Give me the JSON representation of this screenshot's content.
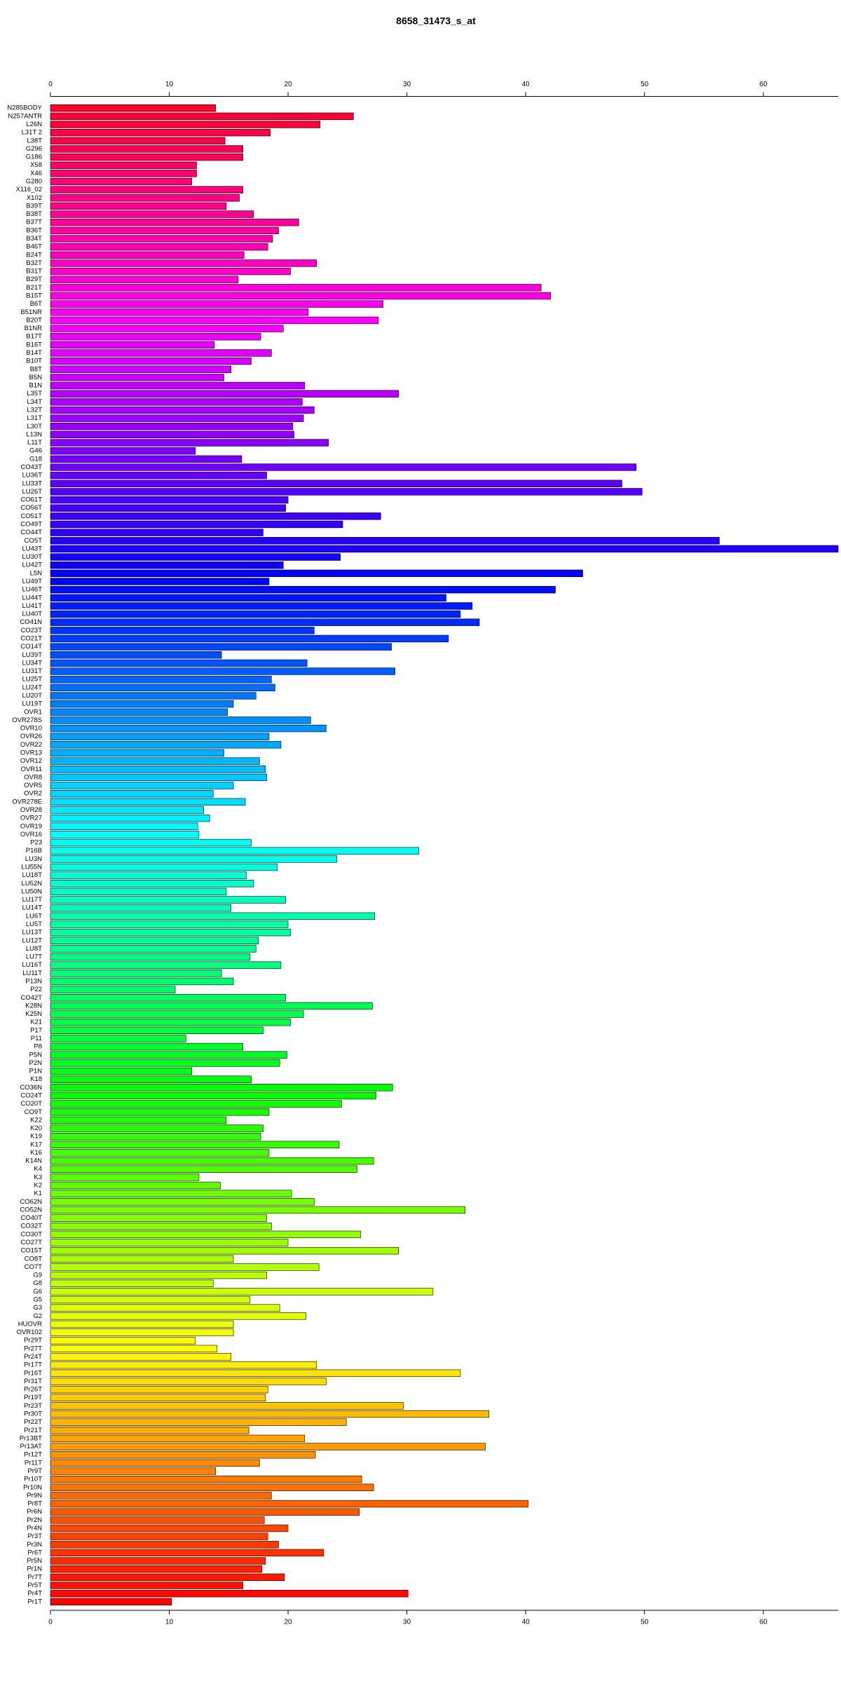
{
  "chart_data": {
    "type": "barh",
    "title": "8658_31473_s_at",
    "categories": [
      "N285BODY",
      "N257ANTR",
      "L26N",
      "L31T 2",
      "L38T",
      "G296",
      "G186",
      "X58",
      "X46",
      "G280",
      "X116_02",
      "X102",
      "B39T",
      "B38T",
      "B37T",
      "B36T",
      "B34T",
      "B46T",
      "B24T",
      "B32T",
      "B31T",
      "B29T",
      "B21T",
      "B15T",
      "B6T",
      "B51NR",
      "B20T",
      "B1NR",
      "B17T",
      "B16T",
      "B14T",
      "B10T",
      "B8T",
      "B5N",
      "B1N",
      "L35T",
      "L34T",
      "L32T",
      "L31T",
      "L30T",
      "L13N",
      "L11T",
      "G46",
      "G18",
      "CO43T",
      "LU36T",
      "LU33T",
      "LU26T",
      "CO61T",
      "CO56T",
      "CO51T",
      "CO49T",
      "CO44T",
      "CO5T",
      "LU43T",
      "LU30T",
      "LU42T",
      "L5N",
      "LU49T",
      "LU46T",
      "LU44T",
      "LU41T",
      "LU40T",
      "CO41N",
      "CO23T",
      "CO21T",
      "CO14T",
      "LU39T",
      "LU34T",
      "LU31T",
      "LU25T",
      "LU24T",
      "LU20T",
      "LU19T",
      "OVR1",
      "OVR278S",
      "OVR10",
      "OVR26",
      "OVR22",
      "OVR13",
      "OVR12",
      "OVR11",
      "OVR8",
      "OVR5",
      "OVR2",
      "OVR278E",
      "OVR28",
      "OVR27",
      "OVR19",
      "OVR16",
      "P23",
      "P16B",
      "LU3N",
      "LU55N",
      "LU18T",
      "LU52N",
      "LU50N",
      "LU17T",
      "LU14T",
      "LU6T",
      "LU5T",
      "LU13T",
      "LU12T",
      "LU8T",
      "LU7T",
      "LU16T",
      "LU11T",
      "P13N",
      "P22",
      "CO42T",
      "K28N",
      "K25N",
      "K21",
      "P17",
      "P11",
      "P8",
      "P5N",
      "P2N",
      "P1N",
      "K18",
      "CO36N",
      "CO24T",
      "CO20T",
      "CO9T",
      "K22",
      "K20",
      "K19",
      "K17",
      "K16",
      "K14N",
      "K4",
      "K3",
      "K2",
      "K1",
      "CO62N",
      "CO52N",
      "CO40T",
      "CO32T",
      "CO30T",
      "CO27T",
      "CO15T",
      "CO8T",
      "CO7T",
      "G9",
      "G8",
      "G6",
      "G5",
      "G3",
      "G2",
      "HUOVR",
      "OVR102",
      "Pr29T",
      "Pr27T",
      "Pr24T",
      "Pr17T",
      "Pr16T",
      "Pr31T",
      "Pr26T",
      "Pr19T",
      "Pr23T",
      "Pr30T",
      "Pr22T",
      "Pr21T",
      "Pr13BT",
      "Pr13AT",
      "Pr12T",
      "Pr11T",
      "Pr9T",
      "Pr10T",
      "Pr10N",
      "Pr9N",
      "Pr8T",
      "Pr6N",
      "Pr2N",
      "Pr4N",
      "Pr3T",
      "Pr3N",
      "Pr6T",
      "Pr5N",
      "Pr1N",
      "Pr7T",
      "Pr5T",
      "Pr4T",
      "Pr1T"
    ],
    "values": [
      13.9,
      25.5,
      22.7,
      18.5,
      14.7,
      16.2,
      16.2,
      12.3,
      12.3,
      11.9,
      16.2,
      15.9,
      14.8,
      17.1,
      20.9,
      19.2,
      18.7,
      18.3,
      16.3,
      22.4,
      20.2,
      15.8,
      41.3,
      42.1,
      28.0,
      21.7,
      27.6,
      19.6,
      17.7,
      13.8,
      18.6,
      16.9,
      15.2,
      14.6,
      21.4,
      29.3,
      21.2,
      22.2,
      21.3,
      20.4,
      20.5,
      23.4,
      12.2,
      16.1,
      49.3,
      18.2,
      48.1,
      49.8,
      20.0,
      19.8,
      27.8,
      24.6,
      17.9,
      56.3,
      66.3,
      24.4,
      19.6,
      44.8,
      18.4,
      42.5,
      33.3,
      35.5,
      34.5,
      36.1,
      22.2,
      33.5,
      28.7,
      14.4,
      21.6,
      29.0,
      18.6,
      18.9,
      17.3,
      15.4,
      14.9,
      21.9,
      23.2,
      18.4,
      19.4,
      14.6,
      17.6,
      18.1,
      18.2,
      15.4,
      13.7,
      16.4,
      12.9,
      13.4,
      12.4,
      12.5,
      16.9,
      31.0,
      24.1,
      19.1,
      16.5,
      17.1,
      14.8,
      19.8,
      15.2,
      27.3,
      20.0,
      20.2,
      17.5,
      17.3,
      16.8,
      19.4,
      14.4,
      15.4,
      10.5,
      19.8,
      27.1,
      21.3,
      20.2,
      17.9,
      11.4,
      16.2,
      19.9,
      19.3,
      11.9,
      16.9,
      28.8,
      27.4,
      24.5,
      18.4,
      14.8,
      17.9,
      17.7,
      24.3,
      18.4,
      27.2,
      25.8,
      12.5,
      14.3,
      20.3,
      22.2,
      34.9,
      18.2,
      18.6,
      26.1,
      20.0,
      29.3,
      15.4,
      22.6,
      18.2,
      13.7,
      32.2,
      16.8,
      19.3,
      21.5,
      15.4,
      15.4,
      12.2,
      14.0,
      15.2,
      22.4,
      34.5,
      23.2,
      18.3,
      18.1,
      29.7,
      36.9,
      24.9,
      16.7,
      21.4,
      36.6,
      22.3,
      17.6,
      13.9,
      26.2,
      27.2,
      18.6,
      40.2,
      26.0,
      18.0,
      20.0,
      18.3,
      19.2,
      23.0,
      18.1,
      17.8,
      19.7,
      16.2,
      30.1,
      10.2
    ],
    "colormap": "rainbow",
    "xlim": [
      0,
      66.3
    ],
    "xticks": [
      0,
      10,
      20,
      30,
      40,
      50,
      60
    ]
  }
}
